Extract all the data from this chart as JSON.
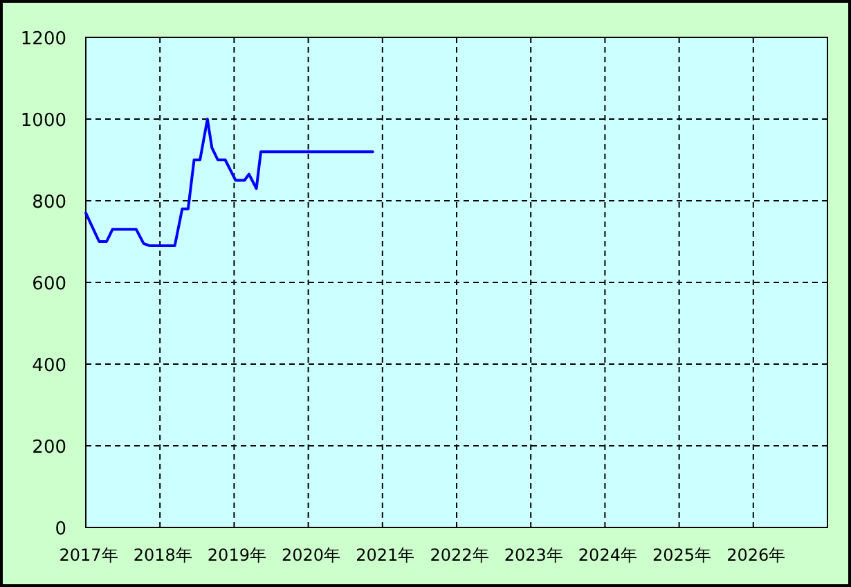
{
  "chart_data": {
    "type": "line",
    "x": [
      2017.0,
      2017.18,
      2017.28,
      2017.36,
      2017.68,
      2017.78,
      2017.86,
      2018.2,
      2018.3,
      2018.38,
      2018.46,
      2018.54,
      2018.64,
      2018.7,
      2018.78,
      2018.88,
      2019.02,
      2019.14,
      2019.2,
      2019.3,
      2019.36,
      2020.87
    ],
    "series": [
      {
        "color": "#0000ff",
        "values": [
          770,
          700,
          700,
          730,
          730,
          695,
          690,
          690,
          780,
          780,
          900,
          900,
          1000,
          930,
          900,
          900,
          850,
          850,
          865,
          830,
          920,
          920
        ]
      }
    ],
    "xlim": [
      2017,
      2027
    ],
    "xticks": [
      {
        "value": 2017,
        "label": "2017年"
      },
      {
        "value": 2018,
        "label": "2018年"
      },
      {
        "value": 2019,
        "label": "2019年"
      },
      {
        "value": 2020,
        "label": "2020年"
      },
      {
        "value": 2021,
        "label": "2021年"
      },
      {
        "value": 2022,
        "label": "2022年"
      },
      {
        "value": 2023,
        "label": "2023年"
      },
      {
        "value": 2024,
        "label": "2024年"
      },
      {
        "value": 2025,
        "label": "2025年"
      },
      {
        "value": 2026,
        "label": "2026年"
      }
    ],
    "ylim": [
      0,
      1200
    ],
    "yticks": [
      0,
      200,
      400,
      600,
      800,
      1000,
      1200
    ],
    "grid": true,
    "marker": "none",
    "line_style": "solid"
  }
}
